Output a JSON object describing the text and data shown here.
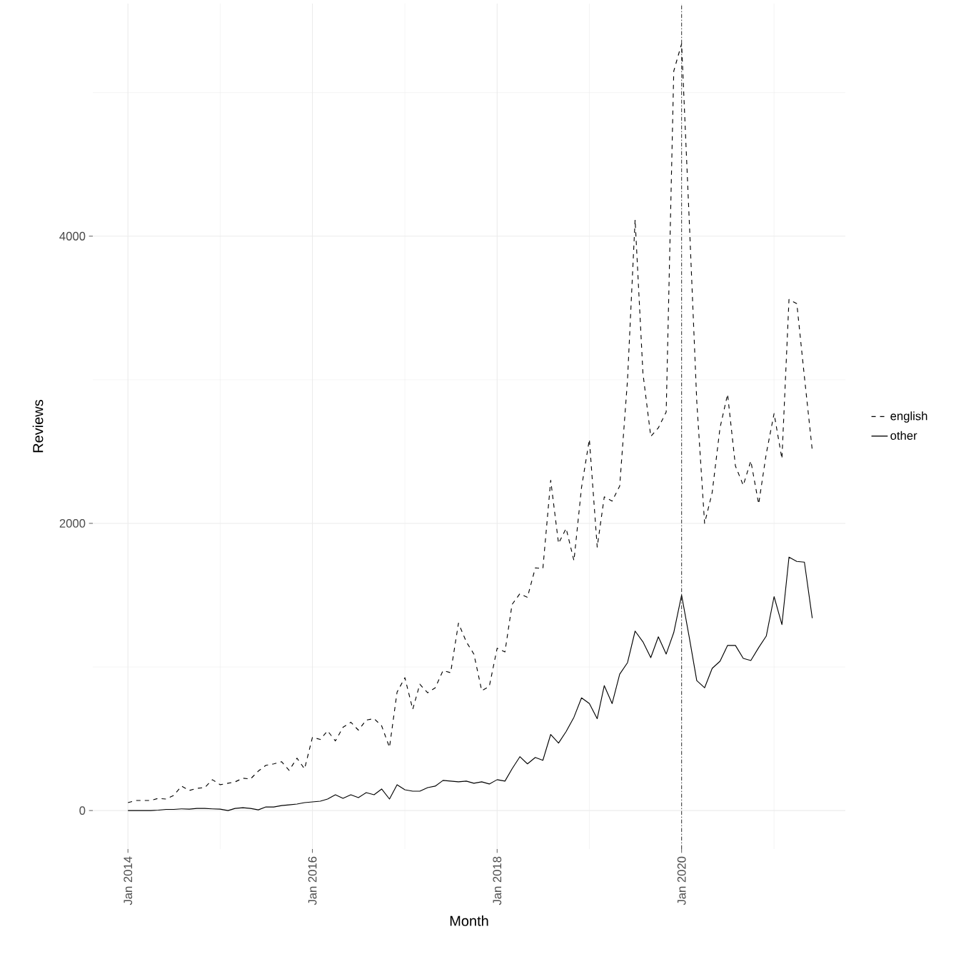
{
  "chart_data": {
    "type": "line",
    "xlabel": "Month",
    "ylabel": "Reviews",
    "x": [
      "2014-01",
      "2014-02",
      "2014-03",
      "2014-04",
      "2014-05",
      "2014-06",
      "2014-07",
      "2014-08",
      "2014-09",
      "2014-10",
      "2014-11",
      "2014-12",
      "2015-01",
      "2015-02",
      "2015-03",
      "2015-04",
      "2015-05",
      "2015-06",
      "2015-07",
      "2015-08",
      "2015-09",
      "2015-10",
      "2015-11",
      "2015-12",
      "2016-01",
      "2016-02",
      "2016-03",
      "2016-04",
      "2016-05",
      "2016-06",
      "2016-07",
      "2016-08",
      "2016-09",
      "2016-10",
      "2016-11",
      "2016-12",
      "2017-01",
      "2017-02",
      "2017-03",
      "2017-04",
      "2017-05",
      "2017-06",
      "2017-07",
      "2017-08",
      "2017-09",
      "2017-10",
      "2017-11",
      "2017-12",
      "2018-01",
      "2018-02",
      "2018-03",
      "2018-04",
      "2018-05",
      "2018-06",
      "2018-07",
      "2018-08",
      "2018-09",
      "2018-10",
      "2018-11",
      "2018-12",
      "2019-01",
      "2019-02",
      "2019-03",
      "2019-04",
      "2019-05",
      "2019-06",
      "2019-07",
      "2019-08",
      "2019-09",
      "2019-10",
      "2019-11",
      "2019-12",
      "2020-01",
      "2020-02",
      "2020-03",
      "2020-04",
      "2020-05",
      "2020-06",
      "2020-07",
      "2020-08",
      "2020-09",
      "2020-10",
      "2020-11",
      "2020-12",
      "2021-01",
      "2021-02",
      "2021-03",
      "2021-04",
      "2021-05",
      "2021-06"
    ],
    "series": [
      {
        "name": "english",
        "color": "#000000",
        "line_style": "dashed",
        "values": [
          55,
          70,
          70,
          70,
          85,
          80,
          105,
          170,
          140,
          155,
          160,
          215,
          180,
          190,
          200,
          225,
          220,
          275,
          315,
          325,
          340,
          280,
          365,
          290,
          510,
          495,
          555,
          485,
          580,
          615,
          560,
          630,
          640,
          590,
          440,
          825,
          925,
          705,
          880,
          820,
          855,
          975,
          960,
          1305,
          1175,
          1090,
          835,
          865,
          1130,
          1105,
          1435,
          1510,
          1485,
          1690,
          1685,
          2300,
          1860,
          1965,
          1740,
          2250,
          2585,
          1835,
          2185,
          2155,
          2260,
          3000,
          4115,
          3045,
          2605,
          2665,
          2775,
          5150,
          5340,
          4080,
          2850,
          2000,
          2215,
          2665,
          2900,
          2400,
          2265,
          2435,
          2135,
          2485,
          2765,
          2450,
          3560,
          3530,
          3020,
          2510
        ]
      },
      {
        "name": "other",
        "color": "#000000",
        "line_style": "solid",
        "values": [
          0,
          0,
          0,
          0,
          3,
          8,
          8,
          12,
          10,
          15,
          15,
          12,
          10,
          0,
          15,
          20,
          15,
          5,
          25,
          25,
          35,
          40,
          45,
          55,
          60,
          65,
          80,
          110,
          85,
          110,
          90,
          125,
          110,
          150,
          80,
          180,
          145,
          135,
          135,
          160,
          170,
          210,
          205,
          200,
          205,
          190,
          200,
          185,
          215,
          205,
          290,
          375,
          325,
          370,
          350,
          530,
          470,
          550,
          650,
          785,
          745,
          640,
          870,
          745,
          950,
          1030,
          1250,
          1175,
          1065,
          1210,
          1090,
          1240,
          1500,
          1200,
          905,
          855,
          990,
          1040,
          1150,
          1150,
          1060,
          1045,
          1135,
          1215,
          1490,
          1295,
          1765,
          1735,
          1730,
          1340
        ]
      }
    ],
    "xlim": [
      "2013-08-15",
      "2021-10-10"
    ],
    "xticks": [
      {
        "value": "2014-01",
        "label": "Jan 2014"
      },
      {
        "value": "2015-01",
        "label": null
      },
      {
        "value": "2016-01",
        "label": "Jan 2016"
      },
      {
        "value": "2017-01",
        "label": null
      },
      {
        "value": "2018-01",
        "label": "Jan 2018"
      },
      {
        "value": "2019-01",
        "label": null
      },
      {
        "value": "2020-01",
        "label": "Jan 2020"
      },
      {
        "value": "2021-01",
        "label": null
      }
    ],
    "ylim": [
      -268,
      5620
    ],
    "yticks": [
      0,
      {
        "value": 1000,
        "label": null
      },
      2000,
      {
        "value": 3000,
        "label": null
      },
      4000,
      {
        "value": 5000,
        "label": null
      }
    ],
    "ref_lines": [
      {
        "axis": "x",
        "value": "2020-01",
        "color": "#333333",
        "line_style": "dashdot"
      }
    ],
    "grid": true,
    "legend": "right"
  }
}
